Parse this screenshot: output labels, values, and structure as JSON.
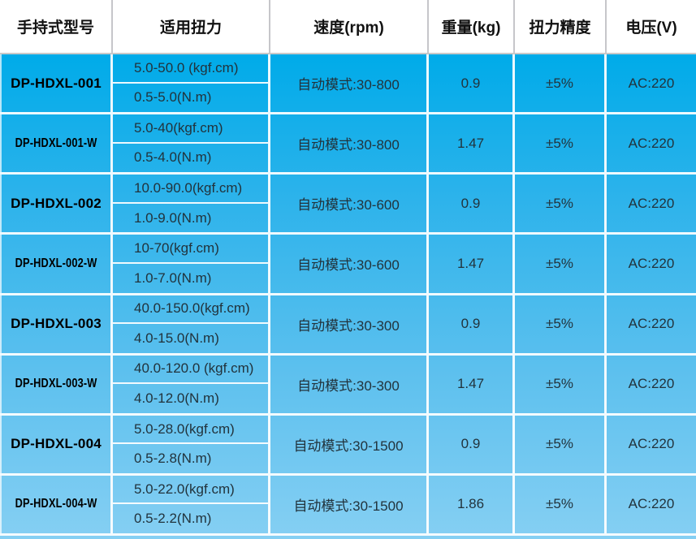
{
  "table": {
    "headers": [
      {
        "label": "手持式型号"
      },
      {
        "label": "适用扭力"
      },
      {
        "label": "速度(rpm)"
      },
      {
        "label": "重量(kg)"
      },
      {
        "label": "扭力精度"
      },
      {
        "label": "电压(V)"
      }
    ],
    "rows": [
      {
        "model": "DP-HDXL-001",
        "torque_kgf": "5.0-50.0 (kgf.cm)",
        "torque_nm": "0.5-5.0(N.m)",
        "speed": "自动模式:30-800",
        "weight": "0.9",
        "accuracy": "±5%",
        "voltage": "AC:220"
      },
      {
        "model": "DP-HDXL-001-W",
        "torque_kgf": "5.0-40(kgf.cm)",
        "torque_nm": "0.5-4.0(N.m)",
        "speed": "自动模式:30-800",
        "weight": "1.47",
        "accuracy": "±5%",
        "voltage": "AC:220"
      },
      {
        "model": "DP-HDXL-002",
        "torque_kgf": "10.0-90.0(kgf.cm)",
        "torque_nm": "1.0-9.0(N.m)",
        "speed": "自动模式:30-600",
        "weight": "0.9",
        "accuracy": "±5%",
        "voltage": "AC:220"
      },
      {
        "model": "DP-HDXL-002-W",
        "torque_kgf": "10-70(kgf.cm)",
        "torque_nm": "1.0-7.0(N.m)",
        "speed": "自动模式:30-600",
        "weight": "1.47",
        "accuracy": "±5%",
        "voltage": "AC:220"
      },
      {
        "model": "DP-HDXL-003",
        "torque_kgf": "40.0-150.0(kgf.cm)",
        "torque_nm": "4.0-15.0(N.m)",
        "speed": "自动模式:30-300",
        "weight": "0.9",
        "accuracy": "±5%",
        "voltage": "AC:220"
      },
      {
        "model": "DP-HDXL-003-W",
        "torque_kgf": "40.0-120.0 (kgf.cm)",
        "torque_nm": "4.0-12.0(N.m)",
        "speed": "自动模式:30-300",
        "weight": "1.47",
        "accuracy": "±5%",
        "voltage": "AC:220"
      },
      {
        "model": "DP-HDXL-004",
        "torque_kgf": "5.0-28.0(kgf.cm)",
        "torque_nm": "0.5-2.8(N.m)",
        "speed": "自动模式:30-1500",
        "weight": "0.9",
        "accuracy": "±5%",
        "voltage": "AC:220"
      },
      {
        "model": "DP-HDXL-004-W",
        "torque_kgf": "5.0-22.0(kgf.cm)",
        "torque_nm": "0.5-2.2(N.m)",
        "speed": "自动模式:30-1500",
        "weight": "1.86",
        "accuracy": "±5%",
        "voltage": "AC:220"
      }
    ]
  },
  "colors": {
    "body_gradient_top": "#00abe9",
    "body_gradient_bottom": "#85cff3",
    "grid_line": "#ffffff",
    "header_bg": "#ffffff",
    "header_divider": "#c6c6ca",
    "header_underline": "#c9c9c9",
    "model_text": "#000000",
    "data_text": "#22333c"
  }
}
